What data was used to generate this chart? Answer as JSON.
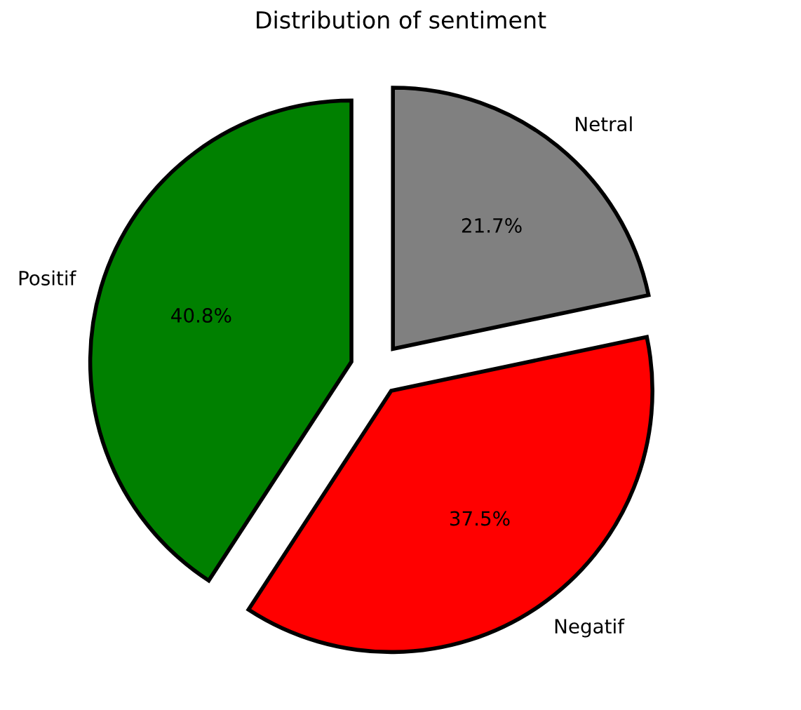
{
  "chart_data": {
    "type": "pie",
    "title": "Distribution of sentiment",
    "categories": [
      "Positif",
      "Negatif",
      "Netral"
    ],
    "values": [
      40.8,
      37.5,
      21.7
    ],
    "colors": [
      "#008000",
      "#ff0000",
      "#808080"
    ],
    "value_labels": [
      "40.8%",
      "37.5%",
      "21.7%"
    ]
  }
}
